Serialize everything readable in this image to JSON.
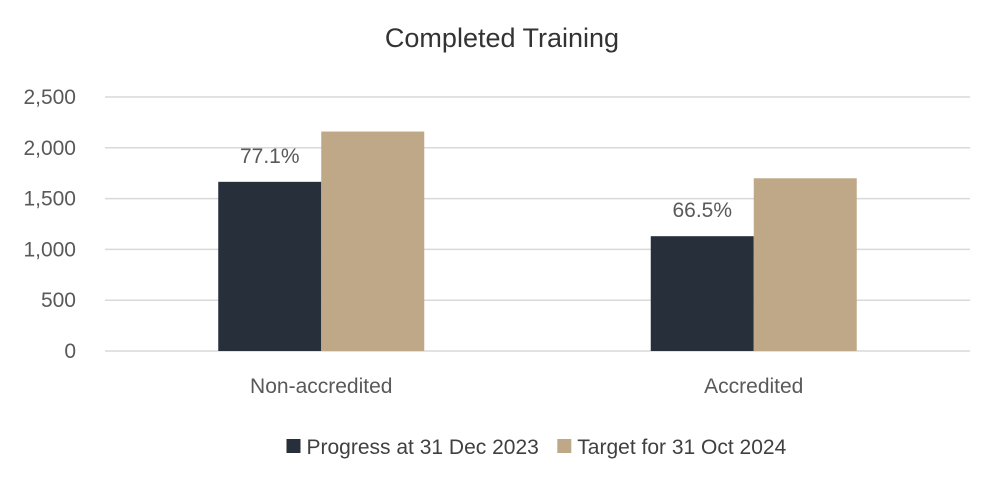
{
  "chart_data": {
    "type": "bar",
    "title": "Completed Training",
    "categories": [
      "Non-accredited",
      "Accredited"
    ],
    "series": [
      {
        "name": "Progress at 31 Dec 2023",
        "values": [
          1665,
          1130
        ],
        "data_labels": [
          "77.1%",
          "66.5%"
        ],
        "color": "#262f3a"
      },
      {
        "name": "Target for 31 Oct 2024",
        "values": [
          2160,
          1700
        ],
        "color": "#bfa887"
      }
    ],
    "yticks": [
      "0",
      "500",
      "1,000",
      "1,500",
      "2,000",
      "2,500"
    ],
    "ytick_values": [
      0,
      500,
      1000,
      1500,
      2000,
      2500
    ],
    "ylim": [
      0,
      2500
    ],
    "grid": true,
    "legend": "bottom"
  }
}
